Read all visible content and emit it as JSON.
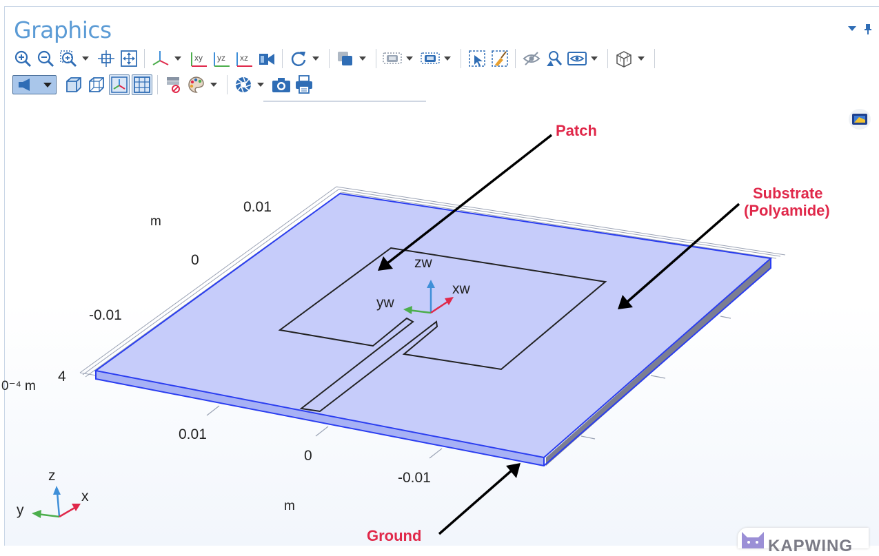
{
  "panel": {
    "title": "Graphics"
  },
  "toolbar": {
    "row1": [
      {
        "name": "zoom-in",
        "icon": "zoom-in-icon"
      },
      {
        "name": "zoom-out",
        "icon": "zoom-out-icon"
      },
      {
        "name": "zoom-box",
        "icon": "zoom-box-icon",
        "dropdown": true
      },
      {
        "name": "zoom-selected",
        "icon": "zoom-selected-icon"
      },
      {
        "name": "zoom-extents",
        "icon": "zoom-extents-icon"
      },
      {
        "name": "default-view",
        "icon": "axes-view-icon",
        "dropdown": true
      },
      {
        "name": "xy-plane",
        "icon": "view-xy-icon",
        "label": "xy"
      },
      {
        "name": "yz-plane",
        "icon": "view-yz-icon",
        "label": "yz"
      },
      {
        "name": "xz-plane",
        "icon": "view-xz-icon",
        "label": "xz"
      },
      {
        "name": "go-to-view",
        "icon": "camera-view-icon"
      },
      {
        "name": "rotate",
        "icon": "rotate-icon",
        "dropdown": true
      },
      {
        "name": "select-objects",
        "icon": "select-objects-icon",
        "dropdown": true
      },
      {
        "name": "select-box",
        "icon": "select-box-icon",
        "dropdown": true
      },
      {
        "name": "deselect-box",
        "icon": "deselect-box-icon",
        "dropdown": true
      },
      {
        "name": "zoom-to-selection",
        "icon": "select-zoom-icon"
      },
      {
        "name": "clear-selection",
        "icon": "clear-selection-icon"
      },
      {
        "name": "hide",
        "icon": "hide-icon"
      },
      {
        "name": "find-entity",
        "icon": "find-entity-icon"
      },
      {
        "name": "view-settings",
        "icon": "view-eye-icon",
        "dropdown": true
      },
      {
        "name": "render-mode",
        "icon": "wireframe-cube-icon",
        "dropdown": true
      }
    ],
    "row2": [
      {
        "name": "light",
        "icon": "light-icon",
        "active": true,
        "dropdown": true
      },
      {
        "name": "transparency",
        "icon": "transparency-cube-icon"
      },
      {
        "name": "wireframe",
        "icon": "wireframe-render-icon"
      },
      {
        "name": "axis-orientation",
        "icon": "axis-orientation-icon",
        "active": true
      },
      {
        "name": "grid",
        "icon": "grid-icon",
        "active": true
      },
      {
        "name": "reset-hiding",
        "icon": "reset-hiding-icon"
      },
      {
        "name": "color-table",
        "icon": "palette-icon",
        "dropdown": true
      },
      {
        "name": "scene-light",
        "icon": "aperture-icon",
        "dropdown": true
      },
      {
        "name": "image-snapshot",
        "icon": "camera-icon"
      },
      {
        "name": "print",
        "icon": "printer-icon"
      }
    ]
  },
  "axes": {
    "y_ticks": [
      {
        "label": "0.01"
      },
      {
        "label": "0"
      },
      {
        "label": "-0.01"
      }
    ],
    "y_unit": "m",
    "z_tick": "4",
    "z_unit": "0⁻⁴ m",
    "x_ticks": [
      {
        "label": "0.01"
      },
      {
        "label": "0"
      },
      {
        "label": "-0.01"
      }
    ],
    "x_unit": "m"
  },
  "work_plane_triad": {
    "z": "zw",
    "y": "yw",
    "x": "xw"
  },
  "global_triad": {
    "z": "z",
    "y": "y",
    "x": "x"
  },
  "annotations": {
    "patch": "Patch",
    "substrate_line1": "Substrate",
    "substrate_line2": "(Polyamide)",
    "ground": "Ground"
  },
  "colors": {
    "accent": "#5b9bd5",
    "annotation": "#e0284a",
    "substrate_fill": "#c6ccfa",
    "substrate_edge": "#2a3df0"
  },
  "watermark": {
    "text": "KAPWING"
  }
}
